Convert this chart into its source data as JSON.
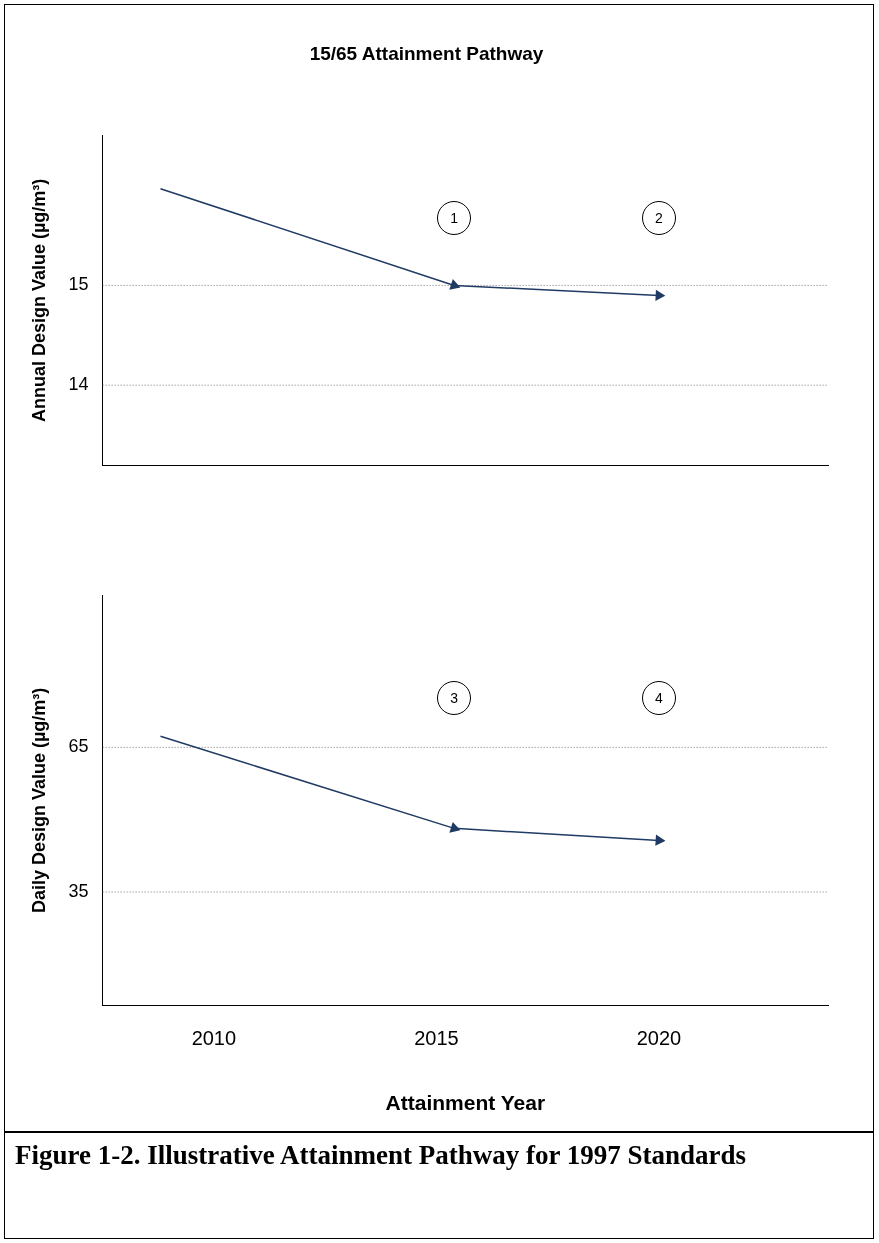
{
  "chart_data": [
    {
      "type": "line",
      "title": "15/65 Attainment Pathway",
      "ylabel": "Annual Design Value (µg/m³)",
      "x": [
        2008.8,
        2015.4,
        2020
      ],
      "series": [
        {
          "color": "#1f3b63",
          "values": [
            15.97,
            15.0,
            14.9
          ]
        }
      ],
      "xlim": [
        2007.5,
        2023.8
      ],
      "ylim": [
        13.2,
        16.5
      ],
      "yticks": [
        14,
        15
      ],
      "grid": "y",
      "tick_labels": "y",
      "marker": "triangle",
      "line_style": "solid",
      "legend": false,
      "annotations": [
        "1",
        "2"
      ]
    },
    {
      "type": "line",
      "xlabel": "Attainment Year",
      "ylabel": "Daily Design Value (µg/m³)",
      "x": [
        2008.8,
        2015.4,
        2020
      ],
      "series": [
        {
          "color": "#1f3b63",
          "values": [
            67.3,
            48.2,
            45.7
          ]
        }
      ],
      "xlim": [
        2007.5,
        2023.8
      ],
      "xticks": [
        2010,
        2015,
        2020
      ],
      "ylim": [
        11.4,
        96.6
      ],
      "yticks": [
        35,
        65
      ],
      "grid": "y",
      "marker": "triangle",
      "line_style": "solid",
      "legend": false,
      "annotations": [
        "3",
        "4",
        "Figure 1-2. Illustrative Attainment Pathway for 1997 Standards"
      ]
    }
  ]
}
